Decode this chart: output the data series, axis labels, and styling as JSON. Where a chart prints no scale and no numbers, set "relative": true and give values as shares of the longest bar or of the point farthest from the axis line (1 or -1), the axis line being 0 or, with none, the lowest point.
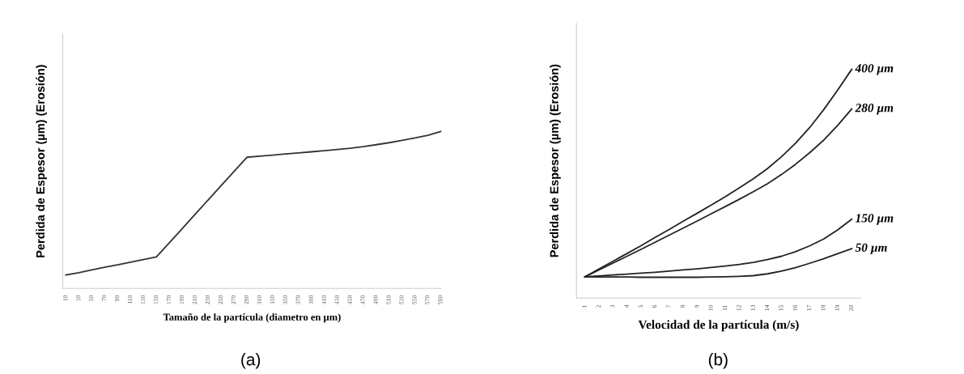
{
  "chart_data": [
    {
      "type": "line",
      "relative": true,
      "xlabel": "Tamaño de la partícula (diametro en µm)",
      "ylabel": "Perdida de Espesor (µm) (Erosión)",
      "annotations": [
        "(a)"
      ],
      "categories": [
        "10",
        "30",
        "50",
        "70",
        "90",
        "110",
        "130",
        "150",
        "170",
        "190",
        "210",
        "230",
        "250",
        "270",
        "290",
        "310",
        "330",
        "350",
        "370",
        "390",
        "410",
        "430",
        "450",
        "470",
        "490",
        "510",
        "530",
        "550",
        "570",
        "590"
      ],
      "series": [
        {
          "color": "#333333",
          "values": [
            0.085,
            0.1,
            0.118,
            0.134,
            0.15,
            0.167,
            0.183,
            0.2,
            0.291,
            0.381,
            0.472,
            0.563,
            0.654,
            0.744,
            0.835,
            0.842,
            0.849,
            0.856,
            0.863,
            0.87,
            0.877,
            0.885,
            0.893,
            0.903,
            0.915,
            0.928,
            0.943,
            0.958,
            0.975,
            1.0
          ]
        }
      ]
    },
    {
      "type": "line",
      "relative": true,
      "xlabel": "Velocidad de la partícula (m/s)",
      "ylabel": "Perdida de Espesor (µm) (Erosión)",
      "annotations": [
        "(b)"
      ],
      "categories": [
        "1",
        "2",
        "3",
        "4",
        "5",
        "6",
        "7",
        "8",
        "9",
        "10",
        "11",
        "12",
        "13",
        "14",
        "15",
        "16",
        "17",
        "18",
        "19",
        "20"
      ],
      "series": [
        {
          "name": "400 µm",
          "color": "#222222",
          "values": [
            0.093,
            0.127,
            0.161,
            0.195,
            0.229,
            0.265,
            0.3,
            0.336,
            0.371,
            0.407,
            0.443,
            0.482,
            0.522,
            0.566,
            0.618,
            0.677,
            0.745,
            0.823,
            0.909,
            1.0
          ]
        },
        {
          "name": "280 µm",
          "color": "#222222",
          "values": [
            0.093,
            0.123,
            0.153,
            0.183,
            0.213,
            0.244,
            0.275,
            0.306,
            0.337,
            0.369,
            0.4,
            0.432,
            0.465,
            0.5,
            0.54,
            0.585,
            0.635,
            0.69,
            0.755,
            0.827
          ]
        },
        {
          "name": "150 µm",
          "color": "#222222",
          "values": [
            0.093,
            0.097,
            0.101,
            0.105,
            0.109,
            0.113,
            0.118,
            0.123,
            0.128,
            0.134,
            0.14,
            0.147,
            0.156,
            0.168,
            0.183,
            0.203,
            0.228,
            0.258,
            0.298,
            0.345
          ]
        },
        {
          "name": "50 µm",
          "color": "#222222",
          "values": [
            0.093,
            0.092,
            0.092,
            0.092,
            0.091,
            0.091,
            0.091,
            0.091,
            0.091,
            0.092,
            0.093,
            0.095,
            0.098,
            0.106,
            0.118,
            0.133,
            0.152,
            0.172,
            0.194,
            0.216
          ]
        }
      ]
    }
  ]
}
